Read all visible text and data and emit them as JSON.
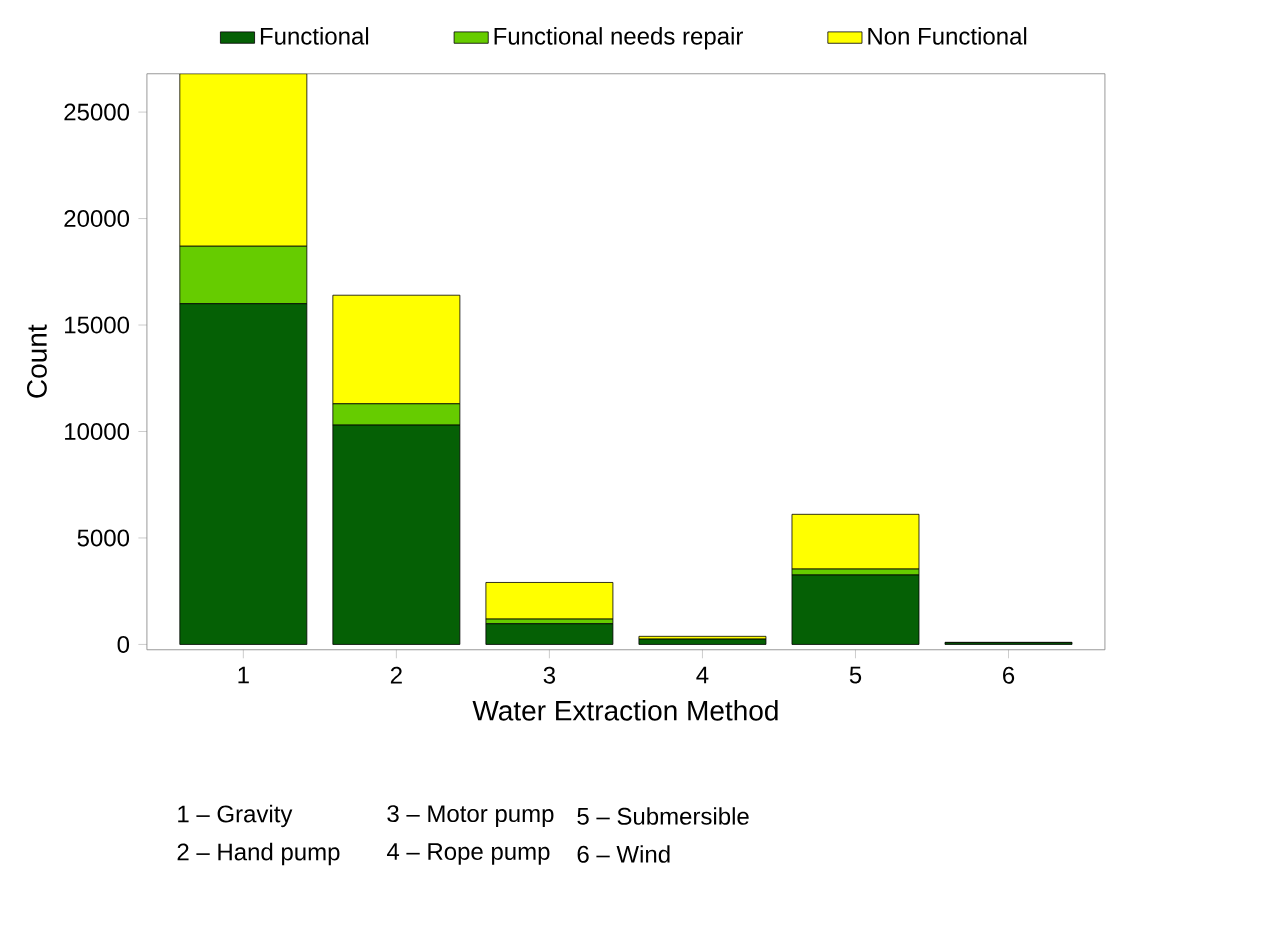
{
  "chart_data": {
    "type": "bar",
    "stacked": true,
    "xlabel": "Water Extraction Method",
    "ylabel": "Count",
    "categories": [
      "1",
      "2",
      "3",
      "4",
      "5",
      "6"
    ],
    "series": [
      {
        "name": "Functional",
        "color": "#056005",
        "values": [
          16000,
          10300,
          970,
          250,
          3260,
          80
        ]
      },
      {
        "name": "Functional needs repair",
        "color": "#66cc00",
        "values": [
          2700,
          1000,
          220,
          null,
          280,
          0
        ]
      },
      {
        "name": "Non Functional",
        "color": "#ffff00",
        "values": [
          8100,
          5100,
          1720,
          130,
          2570,
          20
        ]
      }
    ],
    "ylim": [
      -250,
      26800
    ],
    "yticks": [
      0,
      5000,
      10000,
      15000,
      20000,
      25000
    ],
    "grid": false,
    "legend": "top",
    "annotations": [
      "1 – Gravity",
      "2 – Hand pump",
      "3 – Motor pump",
      "4 – Rope pump",
      "5 – Submersible",
      "6 – Wind"
    ]
  }
}
